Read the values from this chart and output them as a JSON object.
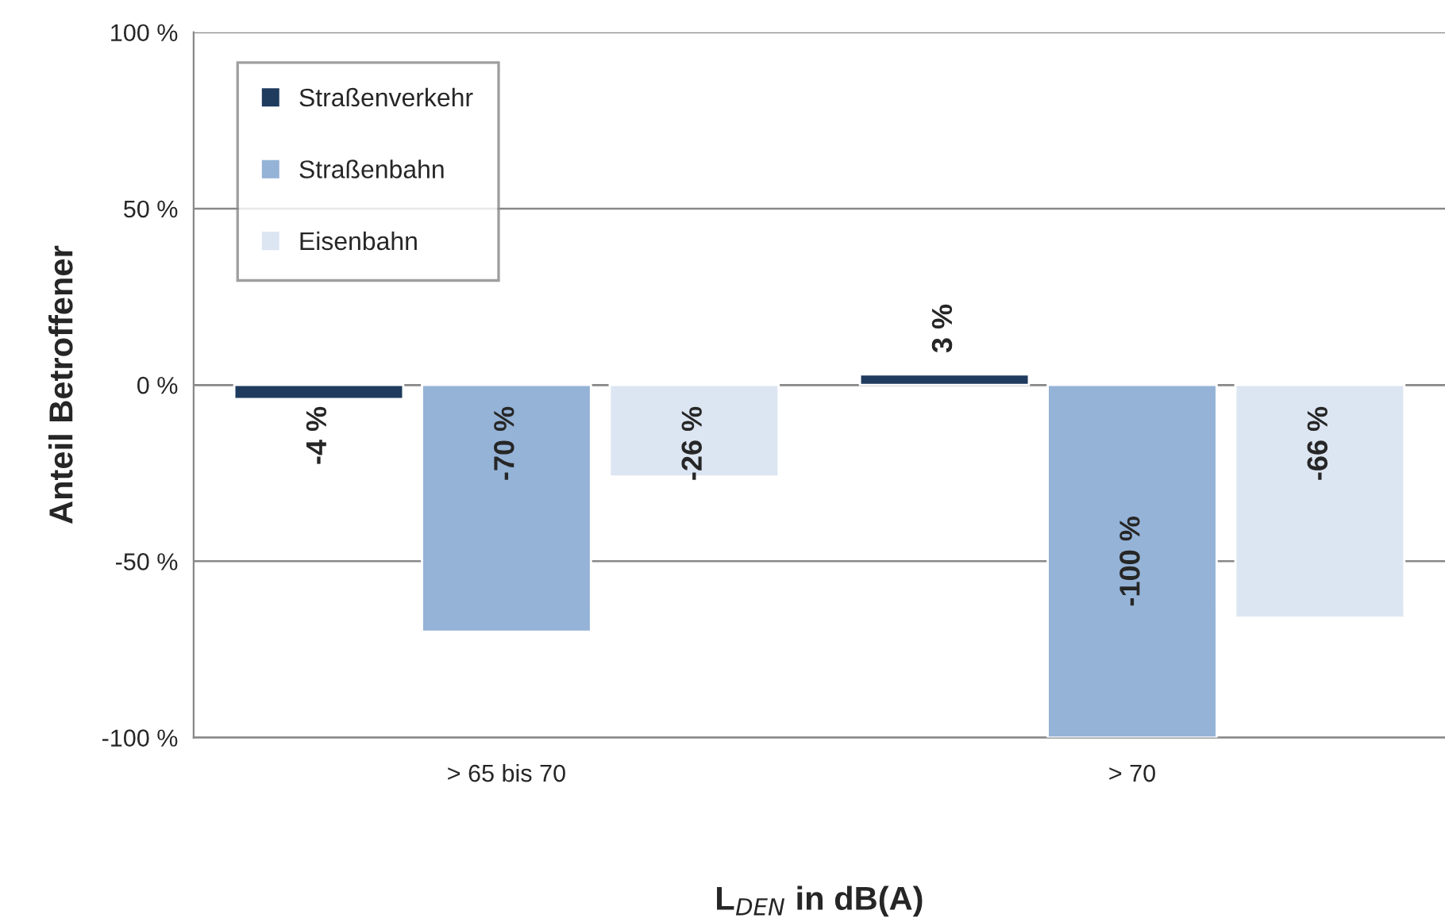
{
  "chart_data": {
    "type": "bar",
    "ylabel": "Anteil Betroffener",
    "xlabel": "L$_{DEN}$ in dB(A)",
    "categories": [
      "> 65 bis 70",
      "> 70"
    ],
    "series": [
      {
        "name": "Straßenverkehr",
        "color": "#1f3b5e",
        "values": [
          -4,
          3
        ],
        "value_labels": [
          "-4 %",
          "3 %"
        ]
      },
      {
        "name": "Straßenbahn",
        "color": "#95b3d7",
        "values": [
          -70,
          -100
        ],
        "value_labels": [
          "-70 %",
          "-100 %"
        ]
      },
      {
        "name": "Eisenbahn",
        "color": "#dce6f2",
        "values": [
          -26,
          -66
        ],
        "value_labels": [
          "-26 %",
          "-66 %"
        ]
      }
    ],
    "ylim": [
      -100,
      100
    ],
    "yticks": [
      {
        "value": -100,
        "label": "-100 %"
      },
      {
        "value": -50,
        "label": "-50 %"
      },
      {
        "value": 0,
        "label": "0 %"
      },
      {
        "value": 50,
        "label": "50 %"
      },
      {
        "value": 100,
        "label": "100 %"
      }
    ],
    "grid": "y",
    "legend": "top left"
  }
}
